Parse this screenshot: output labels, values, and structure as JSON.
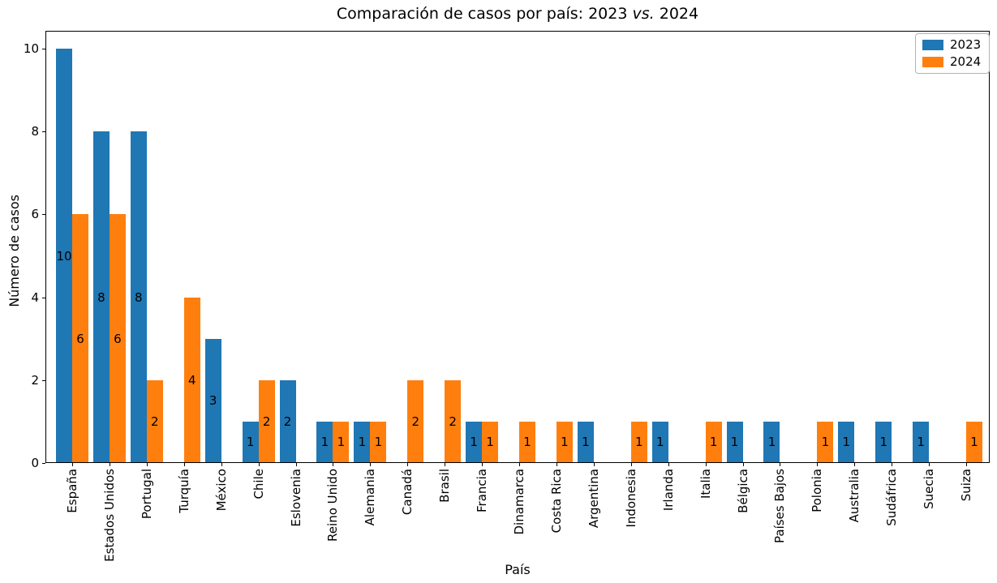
{
  "figure": {
    "title_prefix": "Comparación de casos por país: 2023 ",
    "title_italic": "vs.",
    "title_suffix": " 2024"
  },
  "chart_data": {
    "type": "bar",
    "title": "Comparación de casos por país: 2023 vs. 2024",
    "xlabel": "País",
    "ylabel": "Número de casos",
    "categories": [
      "España",
      "Estados Unidos",
      "Portugal",
      "Turquía",
      "México",
      "Chile",
      "Eslovenia",
      "Reino Unido",
      "Alemania",
      "Canadá",
      "Brasil",
      "Francia",
      "Dinamarca",
      "Costa Rica",
      "Argentina",
      "Indonesia",
      "Irlanda",
      "Italia",
      "Bélgica",
      "Países Bajos",
      "Polonia",
      "Australia",
      "Sudáfrica",
      "Suecia",
      "Suiza"
    ],
    "series": [
      {
        "name": "2023",
        "color": "#1f77b4",
        "values": [
          10,
          8,
          8,
          0,
          3,
          1,
          2,
          1,
          1,
          0,
          0,
          1,
          0,
          0,
          1,
          0,
          1,
          0,
          1,
          1,
          0,
          1,
          1,
          1,
          0
        ]
      },
      {
        "name": "2024",
        "color": "#ff7f0e",
        "values": [
          6,
          6,
          2,
          4,
          0,
          2,
          0,
          1,
          1,
          2,
          2,
          1,
          1,
          1,
          0,
          1,
          0,
          1,
          0,
          0,
          1,
          0,
          0,
          0,
          1
        ]
      }
    ],
    "yticks": [
      0,
      2,
      4,
      6,
      8,
      10
    ],
    "ylim": [
      0,
      10.45
    ],
    "grid": false,
    "legend_position": "upper right",
    "bar_value_labels": "center"
  }
}
